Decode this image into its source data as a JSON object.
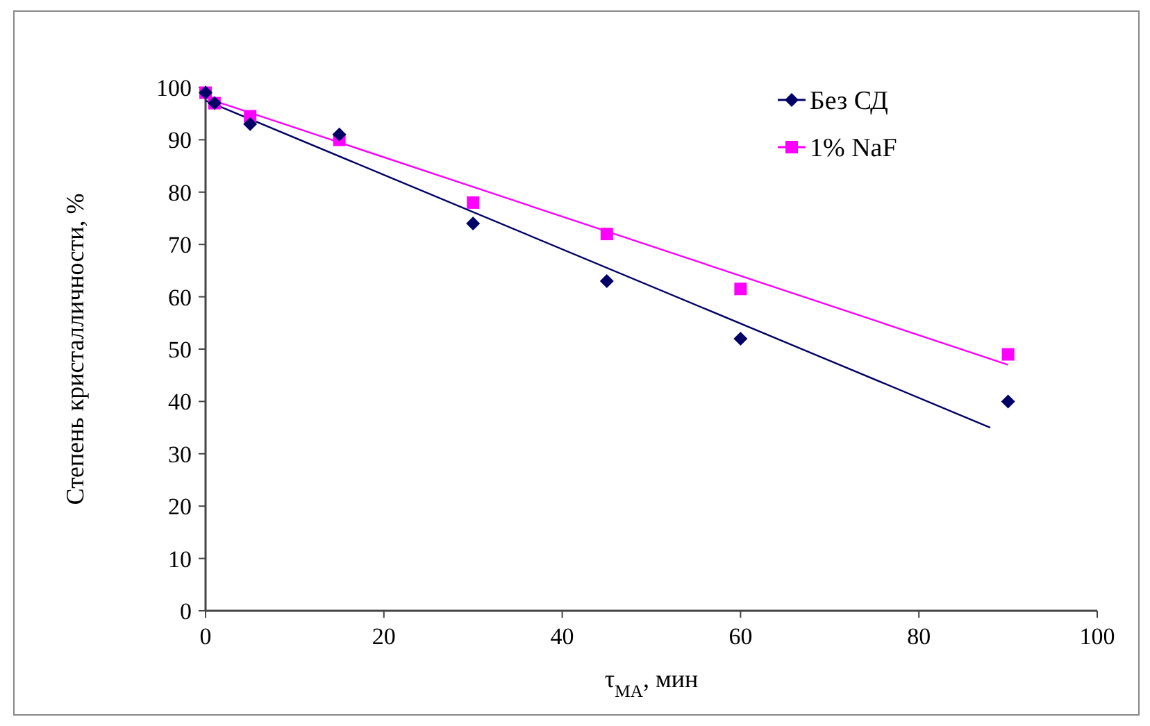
{
  "chart_data": {
    "type": "scatter",
    "xlabel": "τ$_{МА}$, мин",
    "ylabel": "Степень кристалличности, %",
    "xlim": [
      0,
      100
    ],
    "xticks": [
      0,
      20,
      40,
      60,
      80,
      100
    ],
    "ylim": [
      0,
      100
    ],
    "yticks": [
      0,
      10,
      20,
      30,
      40,
      50,
      60,
      70,
      80,
      90,
      100
    ],
    "grid": false,
    "legend": "top right",
    "series": [
      {
        "name": "Без СД",
        "color": "#000066",
        "marker": "diamond",
        "x": [
          0,
          1,
          5,
          15,
          30,
          45,
          60,
          90
        ],
        "values": [
          99,
          97,
          93,
          91,
          74,
          63,
          52,
          40
        ]
      },
      {
        "name": "1% NaF",
        "color": "#ff00ff",
        "marker": "square",
        "x": [
          0,
          1,
          5,
          15,
          30,
          45,
          60,
          90
        ],
        "values": [
          99,
          97,
          94.5,
          90,
          78,
          72,
          61.5,
          49
        ]
      },
      {
        "type": "line",
        "color": "#000066",
        "marker": "none",
        "x": [
          0,
          88
        ],
        "values": [
          97.5,
          35
        ]
      },
      {
        "type": "line",
        "color": "#ff00ff",
        "marker": "none",
        "x": [
          0,
          90
        ],
        "values": [
          98,
          47
        ]
      }
    ]
  }
}
